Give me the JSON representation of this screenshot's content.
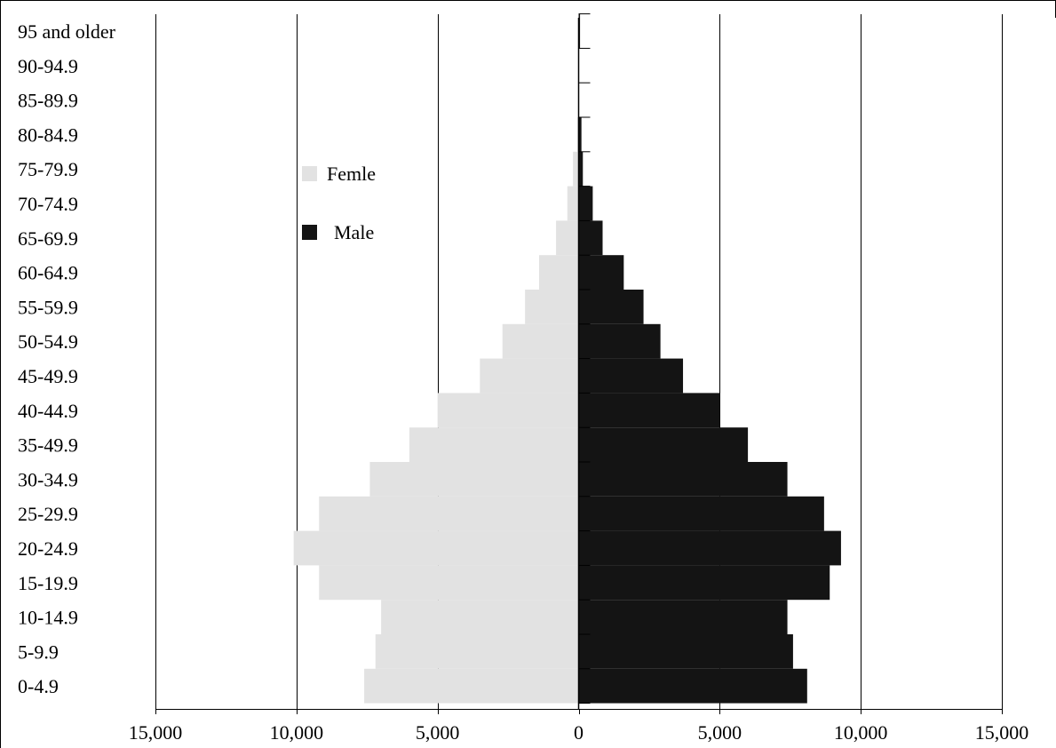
{
  "colors": {
    "female": "#e2e2e2",
    "male": "#141414",
    "grid": "#000000",
    "background": "#ffffff"
  },
  "chart_data": {
    "type": "bar",
    "orientation": "horizontal",
    "title": "",
    "xlabel": "",
    "ylabel": "",
    "xlim": [
      -15000,
      15000
    ],
    "x_ticks": [
      -15000,
      -10000,
      -5000,
      0,
      5000,
      10000,
      15000
    ],
    "x_tick_labels": [
      "15,000",
      "10,000",
      "5,000",
      "0",
      "5,000",
      "10,000",
      "15,000"
    ],
    "grid": true,
    "legend_position": "upper-left",
    "categories": [
      "95 and older",
      "90-94.9",
      "85-89.9",
      "80-84.9",
      "75-79.9",
      "70-74.9",
      "65-69.9",
      "60-64.9",
      "55-59.9",
      "50-54.9",
      "45-49.9",
      "40-44.9",
      "35-49.9",
      "30-34.9",
      "25-29.9",
      "20-24.9",
      "15-19.9",
      "10-14.9",
      "5-9.9",
      "0-4.9"
    ],
    "series": [
      {
        "name": "Femle",
        "side": "left",
        "values": [
          0,
          0,
          0,
          50,
          200,
          400,
          800,
          1400,
          1900,
          2700,
          3500,
          5000,
          6000,
          7400,
          9200,
          10100,
          9200,
          7000,
          7200,
          7600
        ]
      },
      {
        "name": "Male",
        "side": "right",
        "values": [
          50,
          0,
          0,
          100,
          150,
          500,
          850,
          1600,
          2300,
          2900,
          3700,
          5000,
          6000,
          7400,
          8700,
          9300,
          8900,
          7400,
          7600,
          8100
        ]
      }
    ]
  }
}
